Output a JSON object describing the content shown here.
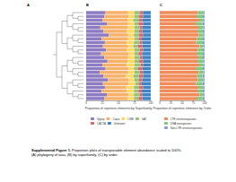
{
  "figure": {
    "panel_labels": [
      "A",
      "B",
      "C"
    ],
    "caption": {
      "label": "Supplemental Figure 1.",
      "text": "Proportion plots of transposable element abundance scaled to 100%. (A) phylogeny of taxa, (B) by superfamily, (C) by order."
    }
  },
  "chart_data": [
    {
      "type": "bar",
      "orientation": "horizontal",
      "stacked": true,
      "grid": false,
      "x_label": "Proportion of repetitive elements by Superfamily",
      "xlim": [
        0,
        100
      ],
      "xticks": [
        0,
        25,
        50,
        75,
        100
      ],
      "categories": [
        null,
        null,
        null,
        null,
        null,
        null,
        null,
        null,
        null,
        null,
        null,
        null,
        null,
        null,
        null,
        null,
        null,
        null,
        null,
        null,
        null,
        null,
        null,
        null
      ],
      "series": [
        {
          "name": "Gypsy",
          "color": "#8e7cc3",
          "values": [
            30,
            28,
            25,
            32,
            22,
            27,
            35,
            24,
            29,
            26,
            31,
            23,
            28,
            33,
            25,
            30,
            21,
            27,
            34,
            26,
            29,
            24,
            32,
            28
          ]
        },
        {
          "name": "Copia",
          "color": "#f6b26b",
          "values": [
            35,
            38,
            40,
            33,
            42,
            36,
            30,
            41,
            34,
            39,
            32,
            43,
            37,
            31,
            38,
            36,
            44,
            35,
            32,
            40,
            33,
            39,
            34,
            36
          ]
        },
        {
          "name": "LINE",
          "color": "#ffd966",
          "values": [
            10,
            9,
            8,
            10,
            11,
            12,
            9,
            10,
            11,
            8,
            12,
            9,
            10,
            11,
            12,
            8,
            10,
            11,
            9,
            10,
            12,
            11,
            8,
            10
          ]
        },
        {
          "name": "hAT",
          "color": "#93c47d",
          "values": [
            8,
            7,
            9,
            6,
            8,
            7,
            8,
            6,
            9,
            7,
            8,
            6,
            8,
            7,
            9,
            6,
            8,
            9,
            7,
            6,
            8,
            7,
            9,
            7
          ]
        },
        {
          "name": "CACTA",
          "color": "#e06666",
          "values": [
            5,
            6,
            5,
            7,
            4,
            5,
            6,
            5,
            4,
            7,
            5,
            6,
            4,
            6,
            4,
            7,
            5,
            6,
            5,
            4,
            6,
            5,
            4,
            6
          ]
        },
        {
          "name": "Unknown",
          "color": "#3d85c6",
          "values": [
            12,
            12,
            13,
            12,
            13,
            13,
            12,
            14,
            13,
            13,
            12,
            13,
            13,
            12,
            12,
            13,
            12,
            12,
            13,
            14,
            12,
            14,
            13,
            13
          ]
        }
      ]
    },
    {
      "type": "bar",
      "orientation": "horizontal",
      "stacked": true,
      "grid": false,
      "x_label": "Proportion of repetitive elements by Order",
      "xlim": [
        0,
        100
      ],
      "xticks": [
        0,
        25,
        50,
        75,
        100
      ],
      "categories": [
        null,
        null,
        null,
        null,
        null,
        null,
        null,
        null,
        null,
        null,
        null,
        null,
        null,
        null,
        null,
        null,
        null,
        null,
        null,
        null,
        null,
        null,
        null,
        null
      ],
      "series": [
        {
          "name": "LTR retrotransposons",
          "color": "#f08c5a",
          "values": [
            85,
            82,
            88,
            80,
            86,
            84,
            87,
            83,
            81,
            89,
            85,
            82,
            86,
            84,
            88,
            80,
            87,
            83,
            85,
            81,
            86,
            84,
            89,
            82
          ]
        },
        {
          "name": "DNA transposons",
          "color": "#7fc97f",
          "values": [
            12,
            14,
            9,
            15,
            11,
            12,
            10,
            13,
            15,
            8,
            11,
            14,
            10,
            13,
            9,
            16,
            10,
            12,
            12,
            14,
            11,
            12,
            8,
            13
          ]
        },
        {
          "name": "Non-LTR retrotransposons",
          "color": "#8da0cb",
          "values": [
            3,
            4,
            3,
            5,
            3,
            4,
            3,
            4,
            4,
            3,
            4,
            4,
            4,
            3,
            3,
            4,
            3,
            5,
            3,
            5,
            3,
            4,
            3,
            5
          ]
        }
      ]
    }
  ]
}
